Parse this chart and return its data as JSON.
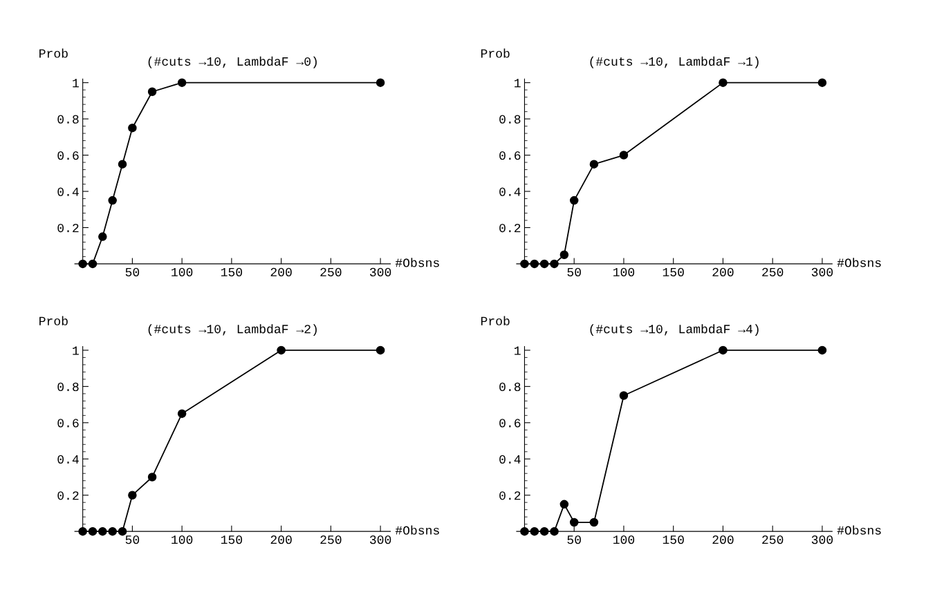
{
  "chart_data": [
    {
      "type": "line",
      "title": "(#cuts →10, LambdaF →0)",
      "xlabel": "#Obsns",
      "ylabel": "Prob",
      "marker": "circle",
      "line_style": "solid",
      "series": [
        {
          "color": "#000000",
          "x": [
            0,
            10,
            20,
            30,
            40,
            50,
            70,
            100,
            300
          ],
          "values": [
            0,
            0,
            0.15,
            0.35,
            0.55,
            0.75,
            0.95,
            1,
            1
          ]
        }
      ],
      "xlim": [
        -8,
        310
      ],
      "ylim": [
        -0.02,
        1.02
      ],
      "xticks": [
        50,
        100,
        150,
        200,
        250,
        300
      ],
      "yticks": [
        0.2,
        0.4,
        0.6,
        0.8,
        1
      ]
    },
    {
      "type": "line",
      "title": "(#cuts →10, LambdaF →1)",
      "xlabel": "#Obsns",
      "ylabel": "Prob",
      "marker": "circle",
      "line_style": "solid",
      "series": [
        {
          "color": "#000000",
          "x": [
            0,
            10,
            20,
            30,
            40,
            50,
            70,
            100,
            200,
            300
          ],
          "values": [
            0,
            0,
            0,
            0,
            0.05,
            0.35,
            0.55,
            0.6,
            1,
            1
          ]
        }
      ],
      "xlim": [
        -8,
        310
      ],
      "ylim": [
        -0.02,
        1.02
      ],
      "xticks": [
        50,
        100,
        150,
        200,
        250,
        300
      ],
      "yticks": [
        0.2,
        0.4,
        0.6,
        0.8,
        1
      ]
    },
    {
      "type": "line",
      "title": "(#cuts →10, LambdaF →2)",
      "xlabel": "#Obsns",
      "ylabel": "Prob",
      "marker": "circle",
      "line_style": "solid",
      "series": [
        {
          "color": "#000000",
          "x": [
            0,
            10,
            20,
            30,
            40,
            50,
            70,
            100,
            200,
            300
          ],
          "values": [
            0,
            0,
            0,
            0,
            0,
            0.2,
            0.3,
            0.65,
            1,
            1
          ]
        }
      ],
      "xlim": [
        -8,
        310
      ],
      "ylim": [
        -0.02,
        1.02
      ],
      "xticks": [
        50,
        100,
        150,
        200,
        250,
        300
      ],
      "yticks": [
        0.2,
        0.4,
        0.6,
        0.8,
        1
      ]
    },
    {
      "type": "line",
      "title": "(#cuts →10, LambdaF →4)",
      "xlabel": "#Obsns",
      "ylabel": "Prob",
      "marker": "circle",
      "line_style": "solid",
      "series": [
        {
          "color": "#000000",
          "x": [
            0,
            10,
            20,
            30,
            40,
            50,
            70,
            100,
            200,
            300
          ],
          "values": [
            0,
            0,
            0,
            0,
            0.15,
            0.05,
            0.05,
            0.75,
            1,
            1
          ]
        }
      ],
      "xlim": [
        -8,
        310
      ],
      "ylim": [
        -0.02,
        1.02
      ],
      "xticks": [
        50,
        100,
        150,
        200,
        250,
        300
      ],
      "yticks": [
        0.2,
        0.4,
        0.6,
        0.8,
        1
      ]
    }
  ]
}
